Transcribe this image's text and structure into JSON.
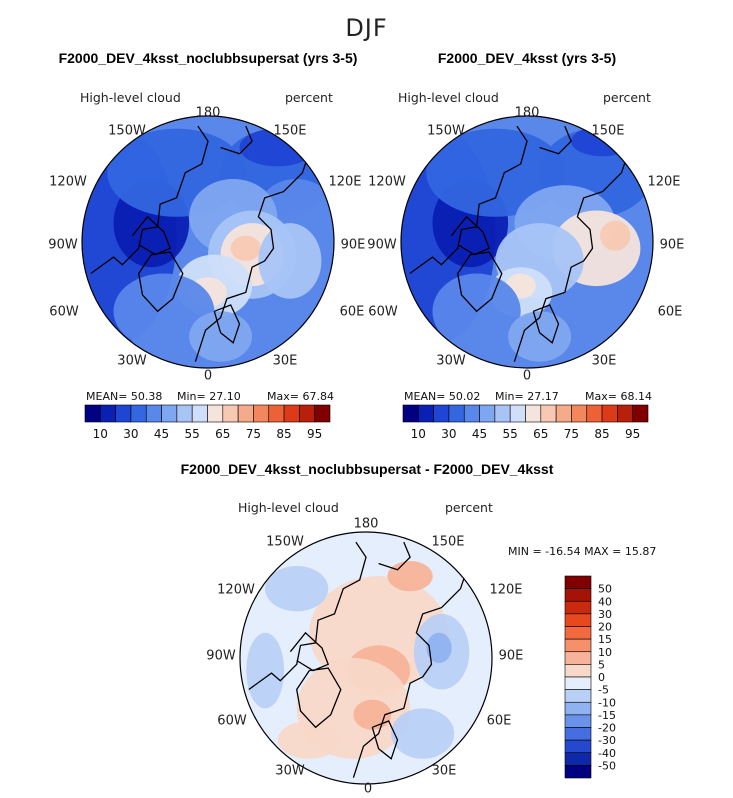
{
  "figure_title": "DJF",
  "panels": [
    {
      "title": "F2000_DEV_4ksst_noclubbsupersat (yrs 3-5)",
      "left_label": "High-level cloud",
      "right_label": "percent",
      "stats": {
        "mean_label": "MEAN=",
        "mean": "50.38",
        "min_label": "Min=",
        "min": "27.10",
        "max_label": "Max=",
        "max": "67.84"
      }
    },
    {
      "title": "F2000_DEV_4ksst (yrs 3-5)",
      "left_label": "High-level cloud",
      "right_label": "percent",
      "stats": {
        "mean_label": "MEAN=",
        "mean": "50.02",
        "min_label": "Min=",
        "min": "27.17",
        "max_label": "Max=",
        "max": "68.14"
      }
    },
    {
      "title": "F2000_DEV_4ksst_noclubbsupersat - F2000_DEV_4ksst",
      "left_label": "High-level cloud",
      "right_label": "percent",
      "stats_line": "MIN = -16.54 MAX =  15.87"
    }
  ],
  "longitude_labels": {
    "top": "180",
    "bottom": "0",
    "l150": "150W",
    "r150": "150E",
    "l120": "120W",
    "r120": "120E",
    "l90": "90W",
    "r90": "90E",
    "l60": "60W",
    "r60": "60E",
    "l30": "30W",
    "r30": "30E"
  },
  "colorbar_fields": {
    "tick_labels": [
      "10",
      "30",
      "45",
      "55",
      "65",
      "75",
      "85",
      "95"
    ],
    "colors": [
      "#000080",
      "#0a1fb3",
      "#1f45d4",
      "#3366e0",
      "#5a87ea",
      "#7fa6f0",
      "#a8c4f5",
      "#cfdff9",
      "#f5e4dc",
      "#f7c9b3",
      "#f5aa8a",
      "#f2875e",
      "#ee6136",
      "#dd3a18",
      "#b8200c",
      "#800000"
    ]
  },
  "colorbar_diff": {
    "tick_labels": [
      "50",
      "40",
      "30",
      "20",
      "15",
      "10",
      "5",
      "0",
      "-5",
      "-10",
      "-15",
      "-20",
      "-30",
      "-40",
      "-50"
    ],
    "colors": [
      "#800000",
      "#a51206",
      "#c92a0e",
      "#e8481e",
      "#f26a3d",
      "#f5906b",
      "#f7b399",
      "#f8d8c8",
      "#e4eefc",
      "#b9d0f6",
      "#8fb2f0",
      "#6993ea",
      "#456fe0",
      "#2449cf",
      "#0d28a8",
      "#000080"
    ]
  },
  "chart_data": [
    {
      "type": "heatmap",
      "projection": "north-polar-stereographic",
      "title": "F2000_DEV_4ksst_noclubbsupersat (yrs 3-5)",
      "variable": "High-level cloud",
      "units": "percent",
      "mean": 50.38,
      "min": 27.1,
      "max": 67.84,
      "levels": [
        10,
        30,
        45,
        55,
        65,
        75,
        85,
        95
      ]
    },
    {
      "type": "heatmap",
      "projection": "north-polar-stereographic",
      "title": "F2000_DEV_4ksst (yrs 3-5)",
      "variable": "High-level cloud",
      "units": "percent",
      "mean": 50.02,
      "min": 27.17,
      "max": 68.14,
      "levels": [
        10,
        30,
        45,
        55,
        65,
        75,
        85,
        95
      ]
    },
    {
      "type": "heatmap",
      "projection": "north-polar-stereographic",
      "title": "F2000_DEV_4ksst_noclubbsupersat - F2000_DEV_4ksst",
      "variable": "High-level cloud",
      "units": "percent",
      "min": -16.54,
      "max": 15.87,
      "levels": [
        -50,
        -40,
        -30,
        -20,
        -15,
        -10,
        -5,
        0,
        5,
        10,
        15,
        20,
        30,
        40,
        50
      ]
    }
  ]
}
